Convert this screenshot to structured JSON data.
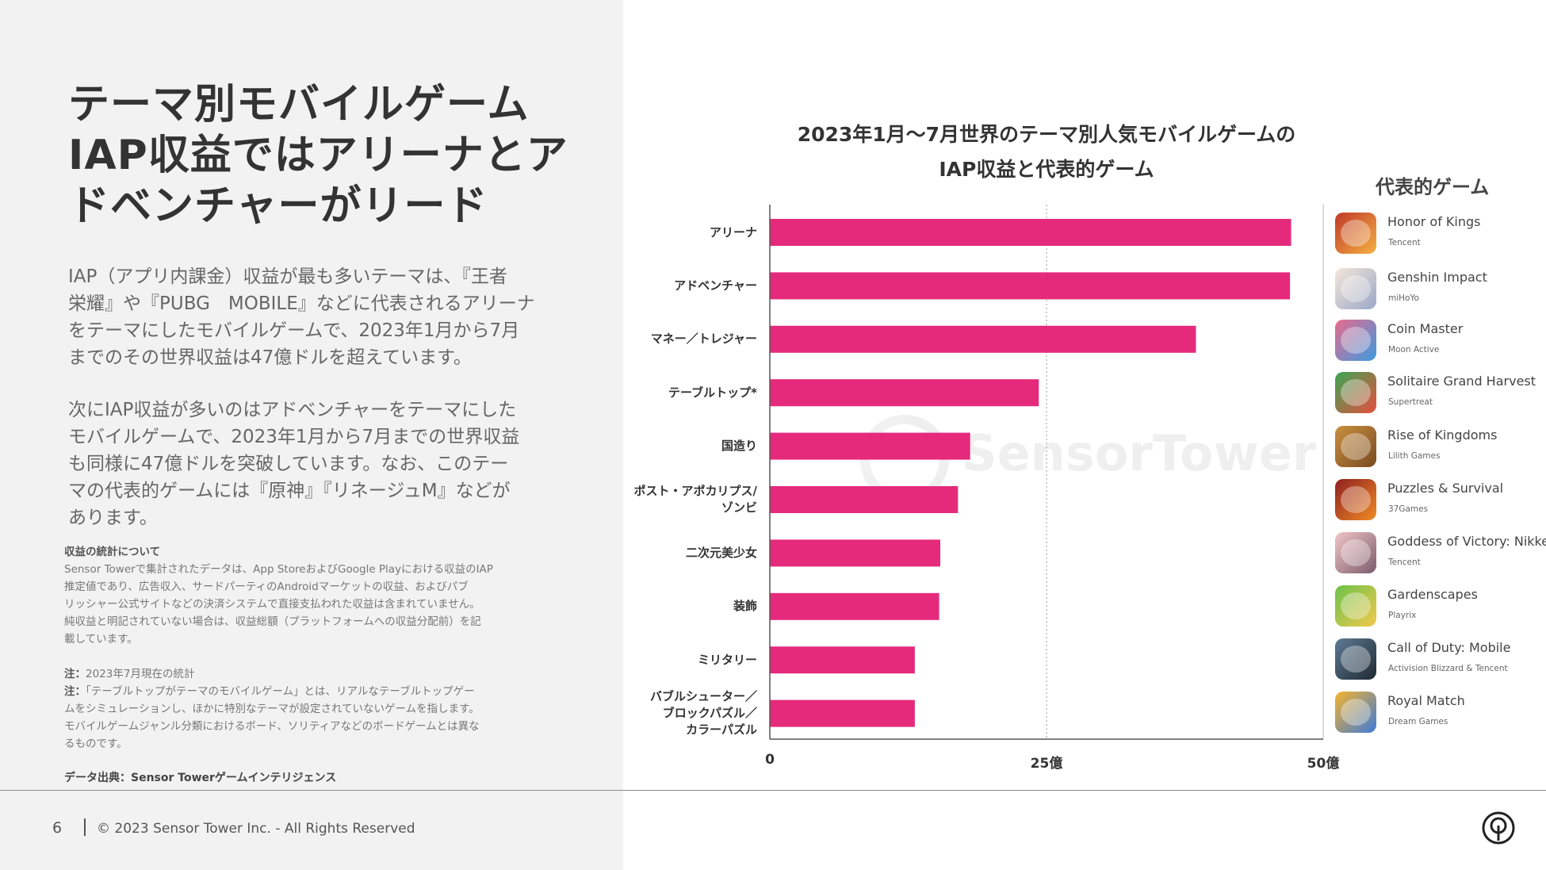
{
  "slide": {
    "title_lines": [
      "テーマ別モバイルゲーム",
      "IAP収益ではアリーナとア",
      "ドベンチャーがリード"
    ],
    "paragraph1_lines": [
      "IAP（アプリ内課金）収益が最も多いテーマは、『王者",
      "栄耀』や『PUBG　MOBILE』などに代表されるアリーナ",
      "をテーマにしたモバイルゲームで、2023年1月から7月",
      "までのその世界収益は47億ドルを超えています。"
    ],
    "paragraph2_lines": [
      "次にIAP収益が多いのはアドベンチャーをテーマにした",
      "モバイルゲームで、2023年1月から7月までの世界収益",
      "も同様に47億ドルを突破しています。なお、このテー",
      "マの代表的ゲームには『原神』『リネージュM』などが",
      "あります。"
    ],
    "revenue_note_heading": "収益の統計について",
    "revenue_note_lines": [
      "Sensor Towerで集計されたデータは、App StoreおよびGoogle Playにおける収益のIAP",
      "推定値であり、広告収入、サードパーティのAndroidマーケットの収益、およびパブ",
      "リッシャー公式サイトなどの決済システムで直接支払われた収益は含まれていません。",
      "純収益と明記されていない場合は、収益総額（プラットフォームへの収益分配前）を記",
      "載しています。"
    ],
    "note1_label": "注：",
    "note1_text": "2023年7月現在の統計",
    "note2_label": "注：",
    "note2_lines": [
      "「テーブルトップがテーマのモバイルゲーム」とは、リアルなテーブルトップゲー",
      "ムをシミュレーションし、ほかに特別なテーマが設定されていないゲームを指します。",
      "モバイルゲームジャンル分類におけるボード、ソリティアなどのボードゲームとは異な",
      "るものです。"
    ],
    "source": "データ出典：Sensor Towerゲームインテリジェンス",
    "page_number": "6",
    "copyright": "© 2023 Sensor Tower Inc. - All Rights Reserved",
    "watermark": "SensorTower"
  },
  "chart_data": {
    "type": "bar",
    "orientation": "horizontal",
    "title_lines": [
      "2023年1月〜7月世界のテーマ別人気モバイルゲームの",
      "IAP収益と代表的ゲーム"
    ],
    "categories": [
      [
        "アリーナ"
      ],
      [
        "アドベンチャー"
      ],
      [
        "マネー／トレジャー"
      ],
      [
        "テーブルトップ*"
      ],
      [
        "国造り"
      ],
      [
        "ポスト・アポカリプス/",
        "ゾンビ"
      ],
      [
        "二次元美少女"
      ],
      [
        "装飾"
      ],
      [
        "ミリタリー"
      ],
      [
        "バブルシューター／",
        "ブロックパズル／",
        "カラーパズル"
      ]
    ],
    "values": [
      47.1,
      47.0,
      38.5,
      24.3,
      18.1,
      17.0,
      15.4,
      15.3,
      13.1,
      13.1
    ],
    "unit": "億ドル",
    "xlim": [
      0,
      50
    ],
    "xticks": [
      0,
      25,
      50
    ],
    "xtick_labels": [
      "0",
      "25億",
      "50億"
    ],
    "bar_color": "#e52a7c",
    "gridline_at": 25
  },
  "legend": {
    "title": "代表的ゲーム",
    "games": [
      {
        "name": "Honor of Kings",
        "publisher": "Tencent",
        "icon": "honor-of-kings-icon",
        "c1": "#c0392b",
        "c2": "#f5b041"
      },
      {
        "name": "Genshin Impact",
        "publisher": "miHoYo",
        "icon": "genshin-impact-icon",
        "c1": "#f4e6d8",
        "c2": "#9aa8c8"
      },
      {
        "name": "Coin Master",
        "publisher": "Moon Active",
        "icon": "coin-master-icon",
        "c1": "#e96a8c",
        "c2": "#3c9be0"
      },
      {
        "name": "Solitaire Grand Harvest",
        "publisher": "Supertreat",
        "icon": "solitaire-grand-harvest-icon",
        "c1": "#3aa655",
        "c2": "#e84d3d"
      },
      {
        "name": "Rise of Kingdoms",
        "publisher": "Lilith Games",
        "icon": "rise-of-kingdoms-icon",
        "c1": "#c9913f",
        "c2": "#7a4a22"
      },
      {
        "name": "Puzzles & Survival",
        "publisher": "37Games",
        "icon": "puzzles-survival-icon",
        "c1": "#8e1f1f",
        "c2": "#f08a24"
      },
      {
        "name": "Goddess of Victory: Nikke",
        "publisher": "Tencent",
        "icon": "goddess-of-victory-nikke-icon",
        "c1": "#f1c6c6",
        "c2": "#7b5b6b"
      },
      {
        "name": "Gardenscapes",
        "publisher": "Playrix",
        "icon": "gardenscapes-icon",
        "c1": "#6cc24a",
        "c2": "#f2c94c"
      },
      {
        "name": "Call of Duty: Mobile",
        "publisher": "Activision Blizzard & Tencent",
        "icon": "call-of-duty-mobile-icon",
        "c1": "#5d7b94",
        "c2": "#1f2a33"
      },
      {
        "name": "Royal Match",
        "publisher": "Dream Games",
        "icon": "royal-match-icon",
        "c1": "#f5b32d",
        "c2": "#3d7bd8"
      }
    ]
  }
}
